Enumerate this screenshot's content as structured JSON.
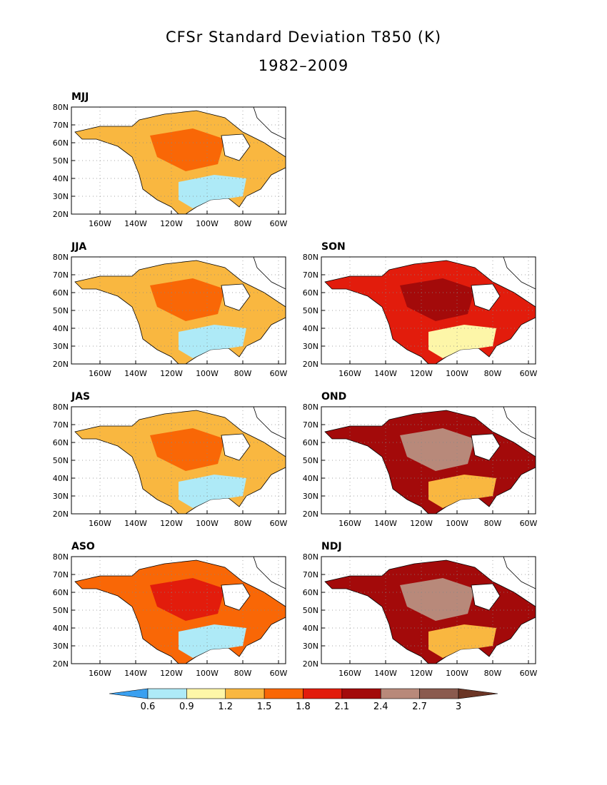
{
  "title": "CFSr Standard Deviation T850 (K)",
  "subtitle": "1982–2009",
  "lat_ticks": [
    "80N",
    "70N",
    "60N",
    "50N",
    "40N",
    "30N",
    "20N"
  ],
  "lon_ticks": [
    "160W",
    "140W",
    "120W",
    "100W",
    "80W",
    "60W"
  ],
  "panels": [
    {
      "label": "MJJ",
      "intensity": 1
    },
    {
      "label": "JJA",
      "intensity": 1
    },
    {
      "label": "SON",
      "intensity": 3
    },
    {
      "label": "JAS",
      "intensity": 1
    },
    {
      "label": "OND",
      "intensity": 4
    },
    {
      "label": "ASO",
      "intensity": 2
    },
    {
      "label": "NDJ",
      "intensity": 5
    }
  ],
  "colorbar": {
    "levels": [
      "0.6",
      "0.9",
      "1.2",
      "1.5",
      "1.8",
      "2.1",
      "2.4",
      "2.7",
      "3"
    ],
    "colors": [
      "#3aa0f0",
      "#aeeaf7",
      "#fdf6a8",
      "#f9b740",
      "#f96706",
      "#e21c0c",
      "#a30a0a",
      "#b8897a",
      "#8a5a4e",
      "#6b3525"
    ]
  }
}
